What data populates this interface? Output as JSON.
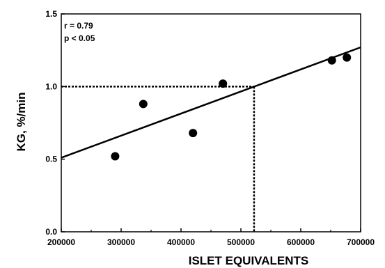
{
  "chart_data": {
    "type": "scatter",
    "xlabel": "ISLET EQUIVALENTS",
    "ylabel": "KG,  %/min",
    "xlim": [
      200000,
      700000
    ],
    "ylim": [
      0.0,
      1.5
    ],
    "x_ticks": [
      200000,
      300000,
      400000,
      500000,
      600000,
      700000
    ],
    "x_tick_labels": [
      "200000",
      "300000",
      "400000",
      "500000",
      "600000",
      "700000"
    ],
    "y_ticks": [
      0.0,
      0.5,
      1.0,
      1.5
    ],
    "y_tick_labels": [
      "0.0",
      "0.5",
      "1.0",
      "1.5"
    ],
    "points": [
      {
        "x": 290000,
        "y": 0.52
      },
      {
        "x": 337000,
        "y": 0.88
      },
      {
        "x": 420000,
        "y": 0.68
      },
      {
        "x": 470000,
        "y": 1.02
      },
      {
        "x": 652000,
        "y": 1.18
      },
      {
        "x": 677000,
        "y": 1.2
      }
    ],
    "regression_line": {
      "x": [
        200000,
        700000
      ],
      "y": [
        0.51,
        1.27
      ]
    },
    "reference_point": {
      "x": 522000,
      "y": 1.0
    },
    "stats": {
      "r": "r  =  0.79",
      "p": "p  <  0.05"
    },
    "grid": false
  }
}
